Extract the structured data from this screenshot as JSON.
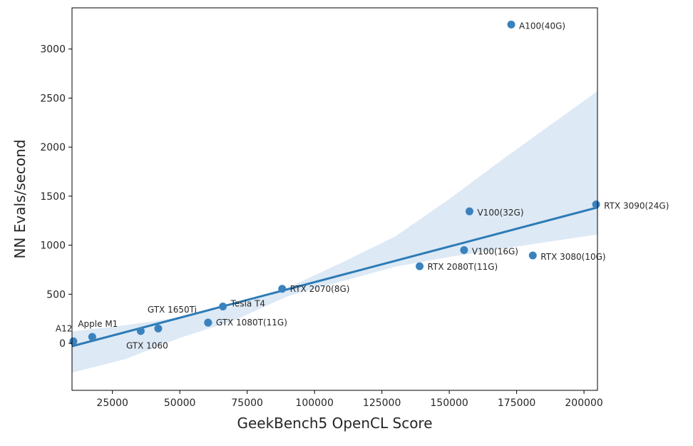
{
  "chart_data": {
    "type": "scatter",
    "title": "",
    "xlabel": "GeekBench5 OpenCL Score",
    "ylabel": "NN Evals/second",
    "xlim": [
      10000,
      205000
    ],
    "ylim": [
      -480,
      3420
    ],
    "x_ticks": [
      25000,
      50000,
      75000,
      100000,
      125000,
      150000,
      175000,
      200000
    ],
    "y_ticks": [
      0,
      500,
      1000,
      1500,
      2000,
      2500,
      3000
    ],
    "grid": false,
    "legend": "none",
    "colors": {
      "points": "#3a82be",
      "regression_line": "#2c7bb6",
      "confidence_band": "#c6dbef",
      "axes": "#000000"
    },
    "points": [
      {
        "label": "A12",
        "x": 10500,
        "y": 20
      },
      {
        "label": "Apple M1",
        "x": 17500,
        "y": 65
      },
      {
        "label": "",
        "x": 35500,
        "y": 125
      },
      {
        "label": "GTX 1060",
        "x": 42000,
        "y": 150
      },
      {
        "label": "GTX 1650Ti",
        "x": 60500,
        "y": 210
      },
      {
        "label": "GTX 1080T(11G)",
        "x": 60500,
        "y": 210
      },
      {
        "label": "Tesla T4",
        "x": 66000,
        "y": 375
      },
      {
        "label": "RTX 2070(8G)",
        "x": 88000,
        "y": 555
      },
      {
        "label": "RTX 2080T(11G)",
        "x": 139000,
        "y": 785
      },
      {
        "label": "V100(16G)",
        "x": 155500,
        "y": 950
      },
      {
        "label": "V100(32G)",
        "x": 157500,
        "y": 1345
      },
      {
        "label": "A100(40G)",
        "x": 173000,
        "y": 3250
      },
      {
        "label": "RTX 3080(10G)",
        "x": 181000,
        "y": 895
      },
      {
        "label": "RTX 3090(24G)",
        "x": 204500,
        "y": 1415
      }
    ],
    "regression": {
      "x": [
        10000,
        205000
      ],
      "y": [
        -30,
        1385
      ],
      "ci_upper": [
        [
          10000,
          120
        ],
        [
          30000,
          185
        ],
        [
          50000,
          265
        ],
        [
          70000,
          380
        ],
        [
          90000,
          565
        ],
        [
          110000,
          820
        ],
        [
          130000,
          1090
        ],
        [
          150000,
          1470
        ],
        [
          170000,
          1880
        ],
        [
          205000,
          2570
        ]
      ],
      "ci_lower": [
        [
          10000,
          -300
        ],
        [
          30000,
          -160
        ],
        [
          50000,
          55
        ],
        [
          70000,
          230
        ],
        [
          90000,
          480
        ],
        [
          110000,
          630
        ],
        [
          130000,
          780
        ],
        [
          150000,
          880
        ],
        [
          170000,
          965
        ],
        [
          205000,
          1110
        ]
      ]
    }
  }
}
